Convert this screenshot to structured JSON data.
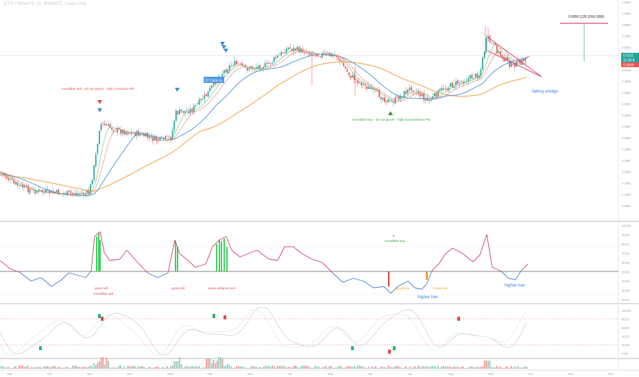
{
  "header": {
    "title": "CTSI / TetherUS, 1D, BINANCE, Trades Only"
  },
  "price_axis": {
    "ticks": [
      "1.0000",
      "0.9000",
      "0.8000",
      "0.7000",
      "0.6000",
      "0.5500",
      "0.5000",
      "0.4500",
      "0.4000",
      "0.3500",
      "0.3000",
      "0.2500",
      "0.2000",
      "0.1800",
      "0.1600",
      "0.1400",
      "0.1200",
      "0.1000",
      "0.0800"
    ],
    "last_price": "0.5311",
    "last_price_sub": "11:36:8",
    "ma_price": "0.4809"
  },
  "rsi_axis": {
    "ticks": [
      "100.00",
      "90.00",
      "80.00",
      "70.00",
      "60.00",
      "50.00",
      "40.00",
      "30.00",
      "20.00"
    ]
  },
  "stoch_axis": {
    "ticks": [
      "100.00",
      "80.00",
      "60.00",
      "40.00",
      "20.00",
      "0.00"
    ]
  },
  "time_axis": {
    "ticks": [
      "Sep",
      "Oct",
      "Nov",
      "Dec",
      "2021",
      "Feb",
      "Mar",
      "Apr",
      "May",
      "Jun",
      "Jul",
      "Aug",
      "Sep",
      "Oct",
      "Nov",
      "Dec"
    ]
  },
  "annotations": {
    "target_label": "0.5850 (126.10%) 5850",
    "tooltip": "37 Cycle lo",
    "incredible_sell": "incredible sell - do not ignore - high correction Prb",
    "incredible_buy": "incredible buy - do not ignore - high accumulation Prb",
    "falling_wedge": "falling wedge",
    "rsi_incredible_buy": "incredible buy",
    "great_sell_1": "great sell",
    "incredible_sell_short": "incredible sell",
    "great_sell_2": "great sell",
    "great_sell_3": "great sellgreat sell",
    "great_buy_1": "great buy",
    "great_buy_2": "Great buy",
    "higher_low_1": "higher low",
    "higher_low_2": "higher low"
  },
  "colors": {
    "up": "#26a69a",
    "down": "#ef5350",
    "ma_blue": "#3d8bd9",
    "ma_orange": "#f0a44b",
    "ma_green": "#66bb6a",
    "ma_pink": "#e57373",
    "rsi_up": "#c73e5c",
    "rsi_down": "#3f76c9",
    "wedge": "#e0406a",
    "sell_marker": "#e04848",
    "buy_marker": "#3b9b3b",
    "blue_marker": "#3e8ed0"
  },
  "chart_data": {
    "type": "candlestick",
    "symbol": "CTSI / TetherUS",
    "timeframe": "1D",
    "x": [
      "Sep",
      "Oct",
      "Nov",
      "Dec",
      "2021",
      "Feb",
      "Mar",
      "Apr",
      "May",
      "Jun",
      "Jul",
      "Aug",
      "Sep",
      "Oct",
      "Nov",
      "Dec"
    ],
    "price_trace": [
      0.11,
      0.095,
      0.09,
      0.085,
      0.095,
      0.19,
      0.2,
      0.21,
      0.2,
      0.34,
      0.38,
      0.55,
      0.5,
      0.62,
      0.7,
      0.58,
      0.55,
      0.35,
      0.28,
      0.3,
      0.32,
      0.36,
      0.45,
      0.78,
      0.48,
      0.53
    ],
    "last_price": 0.5311,
    "target_price": 0.585,
    "target_change_pct": 126.1,
    "indicators": [
      "RSI",
      "Stochastic RSI",
      "Volume"
    ]
  }
}
